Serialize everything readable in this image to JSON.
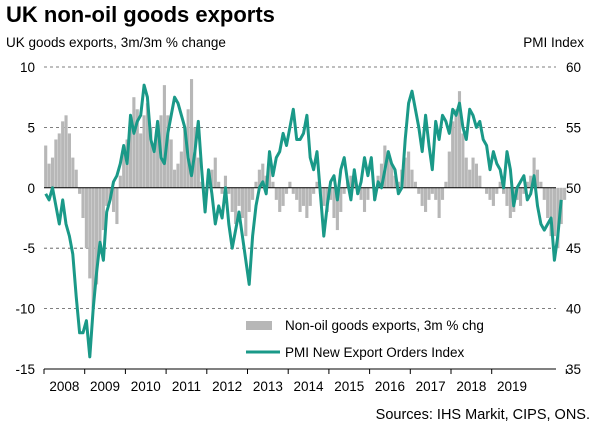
{
  "title": "UK non-oil goods exports",
  "source": "Sources: IHS Markit, CIPS, ONS.",
  "chart_data": {
    "type": "bar+line",
    "title": "UK non-oil goods exports",
    "left_axis": {
      "label": "UK goods exports, 3m/3m % change",
      "ylim": [
        -15,
        10
      ],
      "ticks": [
        10,
        5,
        0,
        -5,
        -10,
        -15
      ]
    },
    "right_axis": {
      "label": "PMI Index",
      "ylim": [
        35,
        60
      ],
      "ticks": [
        60,
        55,
        50,
        45,
        40,
        35
      ]
    },
    "x_axis": {
      "start": 2008.0,
      "end": 2019.83,
      "tick_labels": [
        "2008",
        "2009",
        "2010",
        "2011",
        "2012",
        "2013",
        "2014",
        "2015",
        "2016",
        "2017",
        "2018",
        "2019"
      ]
    },
    "grid": "horizontal dashed",
    "legend": "bottom-right",
    "series": [
      {
        "name": "Non-oil goods exports, 3m % chg",
        "type": "bar",
        "axis": "left",
        "color": "#b7b7b7",
        "start": "2008-01",
        "frequency": "monthly",
        "values": [
          3.5,
          2.0,
          2.5,
          4.0,
          4.5,
          5.5,
          6.0,
          4.5,
          2.5,
          1.5,
          -0.5,
          -2.5,
          -5.0,
          -7.5,
          -10.0,
          -8.0,
          -5.5,
          -3.5,
          -1.5,
          -1.0,
          -2.0,
          -3.0,
          1.0,
          3.0,
          4.0,
          5.5,
          7.5,
          6.5,
          4.5,
          6.0,
          7.0,
          5.0,
          3.0,
          4.5,
          6.0,
          8.5,
          6.0,
          4.0,
          1.5,
          2.0,
          3.0,
          5.0,
          6.5,
          9.0,
          5.0,
          2.5,
          0.5,
          -1.5,
          0.5,
          1.5,
          2.5,
          0.5,
          -0.5,
          1.0,
          -0.5,
          -2.0,
          -3.0,
          -1.5,
          -2.5,
          -4.0,
          -2.0,
          -1.0,
          0.5,
          1.5,
          2.0,
          1.0,
          2.5,
          0.5,
          -1.0,
          -2.0,
          -1.5,
          -0.5,
          0.5,
          -0.5,
          -1.0,
          -2.0,
          -1.5,
          -2.5,
          -1.5,
          -0.5,
          0.5,
          -0.5,
          -1.5,
          -2.0,
          -1.0,
          -2.5,
          -3.5,
          -2.0,
          -0.5,
          0.5,
          1.0,
          0.5,
          -0.5,
          -1.0,
          -2.0,
          -1.0,
          0.0,
          -1.0,
          1.0,
          2.0,
          3.5,
          3.0,
          2.0,
          1.0,
          0.5,
          1.5,
          2.5,
          3.0,
          1.5,
          0.5,
          -0.5,
          -1.5,
          -2.0,
          -1.0,
          -0.5,
          -1.0,
          -2.5,
          -1.0,
          0.5,
          3.0,
          5.5,
          6.5,
          8.0,
          4.5,
          2.5,
          1.5,
          2.5,
          2.0,
          1.0,
          0.0,
          -0.5,
          -1.0,
          -1.5,
          -0.5,
          0.5,
          -0.5,
          -1.5,
          -2.5,
          -2.0,
          -1.0,
          -1.5,
          -0.5,
          0.5,
          1.0,
          2.5,
          1.5,
          0.5,
          -1.0,
          -2.5,
          -4.0,
          -4.0,
          -5.0,
          -3.0,
          -1.0
        ]
      },
      {
        "name": "PMI New Export Orders Index",
        "type": "line",
        "axis": "right",
        "color": "#1a9988",
        "start": "2008-01",
        "frequency": "monthly",
        "values": [
          49.5,
          49.0,
          50.0,
          48.5,
          47.0,
          49.0,
          47.0,
          46.0,
          44.5,
          41.0,
          38.0,
          38.0,
          39.0,
          36.0,
          40.0,
          43.0,
          45.5,
          44.0,
          48.0,
          49.0,
          50.5,
          51.0,
          52.0,
          53.5,
          52.0,
          56.0,
          54.5,
          55.5,
          56.0,
          58.5,
          57.5,
          54.0,
          53.0,
          55.5,
          52.5,
          52.0,
          54.5,
          56.0,
          57.5,
          57.0,
          56.0,
          55.0,
          52.5,
          51.0,
          53.0,
          55.5,
          51.5,
          48.0,
          51.5,
          49.5,
          47.0,
          48.5,
          47.5,
          50.0,
          47.0,
          45.0,
          46.5,
          48.0,
          46.0,
          44.0,
          42.0,
          46.0,
          48.5,
          50.0,
          50.5,
          49.5,
          53.0,
          51.0,
          52.5,
          53.0,
          54.5,
          53.5,
          55.0,
          56.5,
          54.0,
          54.0,
          54.5,
          56.0,
          52.5,
          51.5,
          53.0,
          49.5,
          46.0,
          48.5,
          50.5,
          51.0,
          49.0,
          51.5,
          52.5,
          50.5,
          49.0,
          51.5,
          49.5,
          50.5,
          52.5,
          51.0,
          52.5,
          49.0,
          50.5,
          50.0,
          51.5,
          53.0,
          52.0,
          51.5,
          49.5,
          50.0,
          54.0,
          57.0,
          58.0,
          56.5,
          55.0,
          53.0,
          56.0,
          53.5,
          51.5,
          55.5,
          54.0,
          56.0,
          55.5,
          54.5,
          56.5,
          56.0,
          57.0,
          55.0,
          54.0,
          56.5,
          56.0,
          55.0,
          55.5,
          54.0,
          53.5,
          51.5,
          53.0,
          52.0,
          51.5,
          50.0,
          53.0,
          51.5,
          48.5,
          50.0,
          50.5,
          51.0,
          49.0,
          49.5,
          51.0,
          48.5,
          47.0,
          46.5,
          47.0,
          47.5,
          44.0,
          46.0,
          49.0
        ]
      }
    ]
  }
}
